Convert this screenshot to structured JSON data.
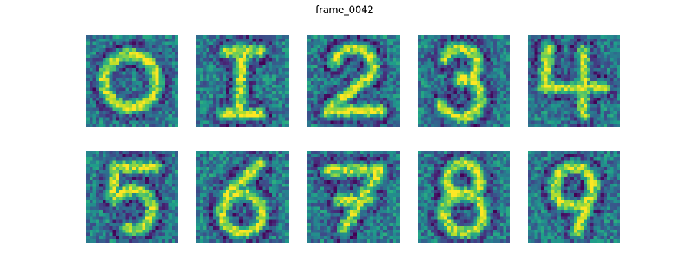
{
  "chart_data": {
    "type": "heatmap",
    "title": "frame_0042",
    "grid": false,
    "colormap": "viridis",
    "colormap_stops": [
      "#440154",
      "#482878",
      "#3e4989",
      "#31688e",
      "#26828e",
      "#1f9e89",
      "#35b779",
      "#6ece58",
      "#b5de2b",
      "#fde725"
    ],
    "panel_rows": 2,
    "panel_cols": 5,
    "matrix_size": [
      28,
      28
    ],
    "value_range": [
      0,
      1
    ],
    "panels": [
      {
        "shape": "zero"
      },
      {
        "shape": "one"
      },
      {
        "shape": "two"
      },
      {
        "shape": "three"
      },
      {
        "shape": "four"
      },
      {
        "shape": "five"
      },
      {
        "shape": "six"
      },
      {
        "shape": "seven"
      },
      {
        "shape": "eight"
      },
      {
        "shape": "nine"
      }
    ]
  }
}
